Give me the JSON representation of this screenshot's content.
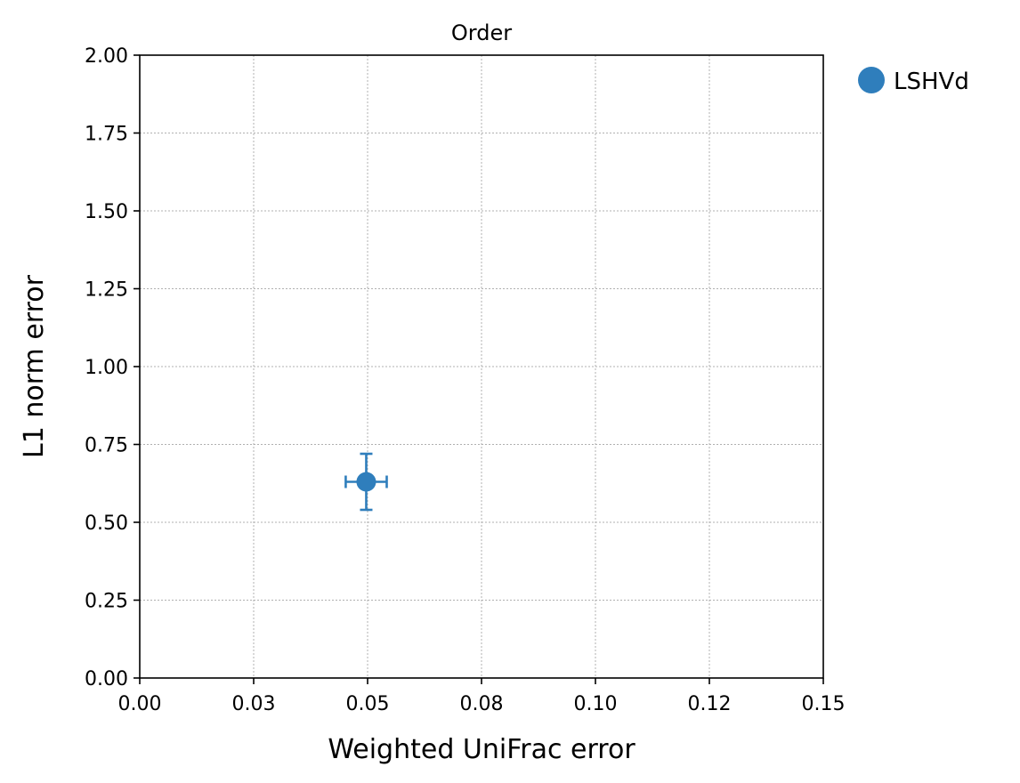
{
  "chart_data": {
    "type": "scatter",
    "title": "Order",
    "xlabel": "Weighted UniFrac error",
    "ylabel": "L1 norm error",
    "xlim": [
      0,
      0.15
    ],
    "ylim": [
      0,
      2
    ],
    "xticks": [
      0,
      0.025,
      0.05,
      0.075,
      0.1,
      0.125,
      0.15
    ],
    "xtick_labels": [
      "0.00",
      "0.03",
      "0.05",
      "0.08",
      "0.10",
      "0.12",
      "0.15"
    ],
    "yticks": [
      0,
      0.25,
      0.5,
      0.75,
      1.0,
      1.25,
      1.5,
      1.75,
      2.0
    ],
    "ytick_labels": [
      "0.00",
      "0.25",
      "0.50",
      "0.75",
      "1.00",
      "1.25",
      "1.50",
      "1.75",
      "2.00"
    ],
    "grid": true,
    "legend_position": "outside-top-right",
    "series": [
      {
        "name": "LSHVd",
        "color": "#2f7ebc",
        "points": [
          {
            "x": 0.0497,
            "y": 0.63,
            "xerr": 0.0045,
            "yerr": 0.09
          }
        ]
      }
    ]
  }
}
